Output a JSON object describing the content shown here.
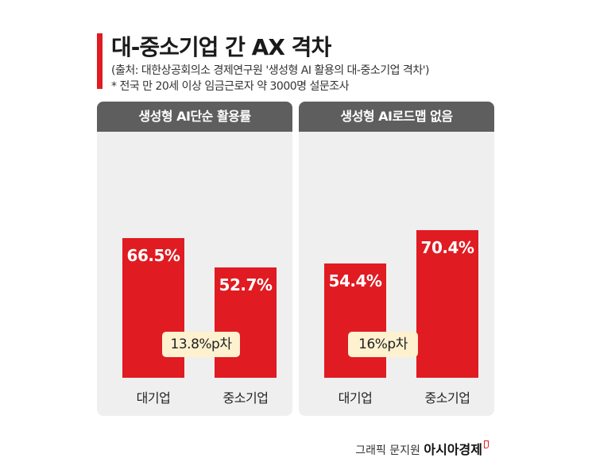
{
  "header": {
    "title": "대-중소기업 간 AX 격차",
    "source": "(출처: 대한상공회의소 경제연구원 '생성형 AI 활용의 대-중소기업 격차')",
    "note": "* 전국 만 20세 이상 임금근로자 약 3000명 설문조사"
  },
  "colors": {
    "accent": "#e01b22",
    "panel_bg": "#efefef",
    "panel_head": "#5e5e5e",
    "badge_bg": "#fdf1cf"
  },
  "chart_data": [
    {
      "type": "bar",
      "title": "생성형 AI단순 활용률",
      "categories": [
        "대기업",
        "중소기업"
      ],
      "values": [
        66.5,
        52.7
      ],
      "value_labels": [
        "66.5%",
        "52.7%"
      ],
      "unit": "%",
      "gap_label": "13.8%p차",
      "ylim": [
        0,
        80
      ]
    },
    {
      "type": "bar",
      "title": "생성형 AI로드맵 없음",
      "categories": [
        "대기업",
        "중소기업"
      ],
      "values": [
        54.4,
        70.4
      ],
      "value_labels": [
        "54.4%",
        "70.4%"
      ],
      "unit": "%",
      "gap_label": "16%p차",
      "ylim": [
        0,
        80
      ]
    }
  ],
  "footer": {
    "credit": "그래픽 문지원",
    "brand": "아시아경제"
  }
}
